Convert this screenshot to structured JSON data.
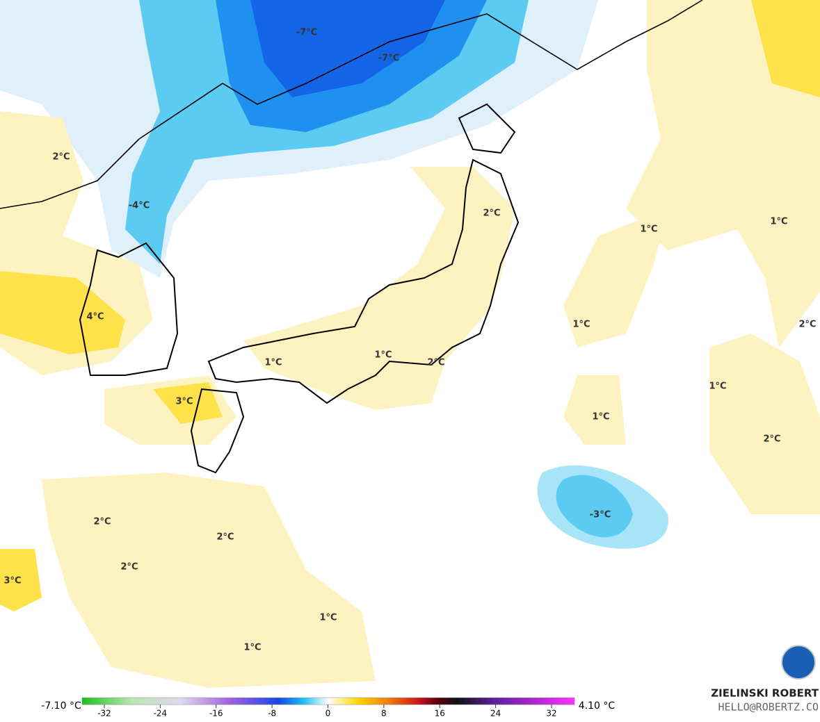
{
  "map_labels": [
    "-7°C",
    "-7°C",
    "2°C",
    "-4°C",
    "2°C",
    "1°C",
    "1°C",
    "4°C",
    "1°C",
    "2°C",
    "1°C",
    "1°C",
    "2°C",
    "1°C",
    "3°C",
    "1°C",
    "2°C",
    "-3°C",
    "2°C",
    "2°C",
    "2°C",
    "3°C",
    "1°C",
    "1°C"
  ],
  "legend": {
    "min_label": "-7.10 °C",
    "max_label": "4.10 °C",
    "ticks": [
      -32,
      -24,
      -16,
      -8,
      0,
      8,
      16,
      24,
      32
    ]
  },
  "credit": {
    "name": "ZIELINSKI ROBERT",
    "email": "HELLO@ROBERTZ.CO"
  }
}
